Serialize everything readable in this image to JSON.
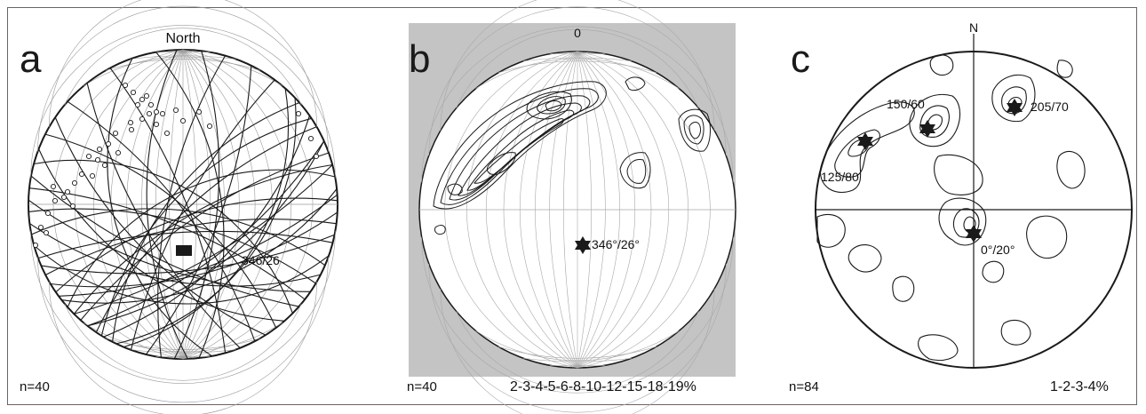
{
  "panels": [
    {
      "letter": "a",
      "north_label": "North",
      "annotation": "346/26",
      "n_label": "n=40"
    },
    {
      "letter": "b",
      "north_label": "0",
      "annotation": "346°/26°",
      "n_label": "n=40",
      "contour_legend": "2-3-4-5-6-8-10-12-15-18-19%"
    },
    {
      "letter": "c",
      "north_label": "N",
      "labels": [
        "150/60",
        "205/70",
        "125/80",
        "0°/20°"
      ],
      "n_label": "n=84",
      "contour_legend": "1-2-3-4%"
    }
  ],
  "colors": {
    "line": "#1a1a1a",
    "grid": "#9a9a9a",
    "shade": "#c4c4c4"
  }
}
